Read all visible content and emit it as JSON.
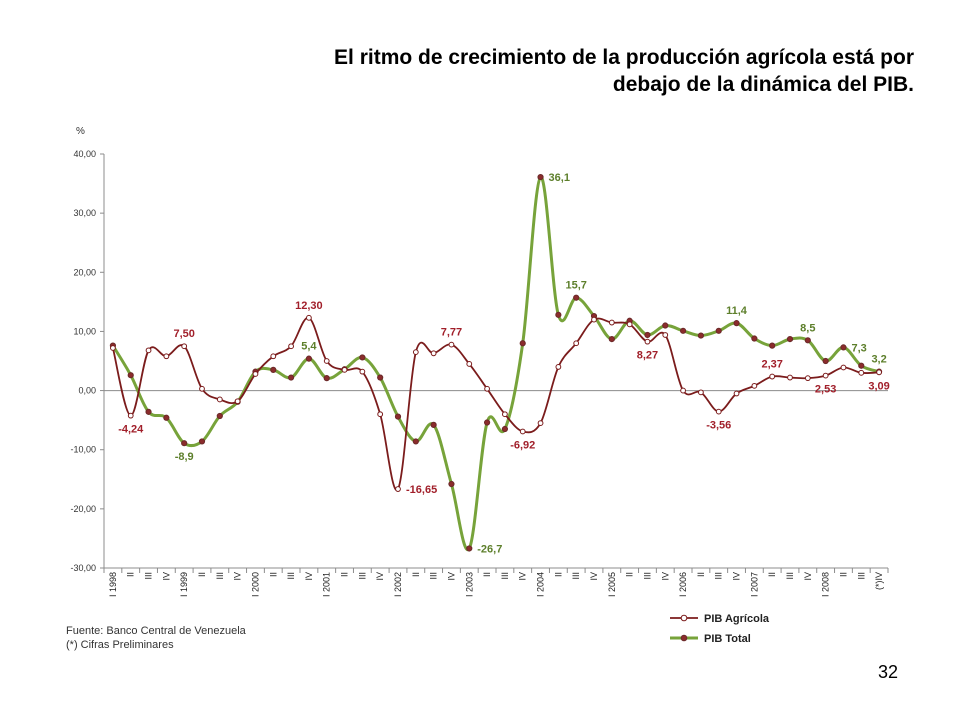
{
  "title": {
    "line1": "El ritmo de crecimiento de la producción agrícola está por",
    "line2": "debajo de la dinámica del PIB."
  },
  "footer": {
    "source": "Fuente: Banco Central de Venezuela",
    "note": "(*) Cifras Preliminares"
  },
  "page_number": "32",
  "chart_data": {
    "type": "line",
    "ylabel": "%",
    "ylim": [
      -30,
      40
    ],
    "yticks": [
      "40,00",
      "30,00",
      "20,00",
      "10,00",
      "0,00",
      "-10,00",
      "-20,00",
      "-30,00"
    ],
    "grid": false,
    "legend_position": "bottom-right",
    "categories": [
      "I 1998",
      "II",
      "III",
      "IV",
      "I 1999",
      "II",
      "III",
      "IV",
      "I 2000",
      "II",
      "III",
      "IV",
      "I 2001",
      "II",
      "III",
      "IV",
      "I 2002",
      "II",
      "III",
      "IV",
      "I 2003",
      "II",
      "III",
      "IV",
      "I 2004",
      "II",
      "III",
      "IV",
      "I 2005",
      "II",
      "III",
      "IV",
      "I 2006",
      "II",
      "III",
      "IV",
      "I 2007",
      "II",
      "III",
      "IV",
      "I 2008",
      "II",
      "III",
      "(*)IV"
    ],
    "series": [
      {
        "name": "PIB Agrícola",
        "color": "#7b1c1c",
        "marker_fill": "#ffffff",
        "values": [
          7.2,
          -4.24,
          6.8,
          5.8,
          7.5,
          0.3,
          -1.5,
          -1.8,
          2.8,
          5.8,
          7.5,
          12.3,
          5.0,
          3.5,
          3.2,
          -4.0,
          -16.65,
          6.5,
          6.3,
          7.77,
          4.5,
          0.3,
          -4.0,
          -6.92,
          -5.5,
          4.0,
          8.0,
          12.0,
          11.5,
          11.2,
          8.27,
          9.4,
          0.0,
          -0.3,
          -3.56,
          -0.5,
          0.8,
          2.37,
          2.2,
          2.1,
          2.53,
          3.9,
          3.0,
          3.09
        ]
      },
      {
        "name": "PIB Total",
        "color": "#77a33a",
        "marker_fill": "#8b2c2c",
        "values": [
          7.6,
          2.6,
          -3.6,
          -4.6,
          -8.9,
          -8.6,
          -4.3,
          -1.9,
          3.2,
          3.5,
          2.2,
          5.4,
          2.1,
          3.6,
          5.6,
          2.2,
          -4.4,
          -8.6,
          -5.8,
          -15.8,
          -26.7,
          -5.4,
          -6.5,
          8.0,
          36.1,
          12.8,
          15.7,
          12.6,
          8.7,
          11.8,
          9.4,
          11.0,
          10.1,
          9.3,
          10.1,
          11.4,
          8.8,
          7.6,
          8.7,
          8.5,
          5.0,
          7.3,
          4.2,
          3.2
        ]
      }
    ],
    "data_labels": [
      {
        "series": 0,
        "index": 1,
        "text": "-4,24",
        "pos": "below"
      },
      {
        "series": 0,
        "index": 4,
        "text": "7,50",
        "pos": "above"
      },
      {
        "series": 0,
        "index": 11,
        "text": "12,30",
        "pos": "above"
      },
      {
        "series": 0,
        "index": 16,
        "text": "-16,65",
        "pos": "right"
      },
      {
        "series": 0,
        "index": 19,
        "text": "7,77",
        "pos": "above"
      },
      {
        "series": 0,
        "index": 23,
        "text": "-6,92",
        "pos": "below"
      },
      {
        "series": 0,
        "index": 30,
        "text": "8,27",
        "pos": "below"
      },
      {
        "series": 0,
        "index": 34,
        "text": "-3,56",
        "pos": "below"
      },
      {
        "series": 0,
        "index": 37,
        "text": "2,37",
        "pos": "above"
      },
      {
        "series": 0,
        "index": 40,
        "text": "2,53",
        "pos": "below"
      },
      {
        "series": 0,
        "index": 43,
        "text": "3,09",
        "pos": "below"
      },
      {
        "series": 1,
        "index": 4,
        "text": "-8,9",
        "pos": "below"
      },
      {
        "series": 1,
        "index": 11,
        "text": "5,4",
        "pos": "above"
      },
      {
        "series": 1,
        "index": 20,
        "text": "-26,7",
        "pos": "right"
      },
      {
        "series": 1,
        "index": 24,
        "text": "36,1",
        "pos": "right"
      },
      {
        "series": 1,
        "index": 26,
        "text": "15,7",
        "pos": "above"
      },
      {
        "series": 1,
        "index": 35,
        "text": "11,4",
        "pos": "above"
      },
      {
        "series": 1,
        "index": 39,
        "text": "8,5",
        "pos": "above"
      },
      {
        "series": 1,
        "index": 41,
        "text": "7,3",
        "pos": "right"
      },
      {
        "series": 1,
        "index": 43,
        "text": "3,2",
        "pos": "above"
      }
    ]
  }
}
